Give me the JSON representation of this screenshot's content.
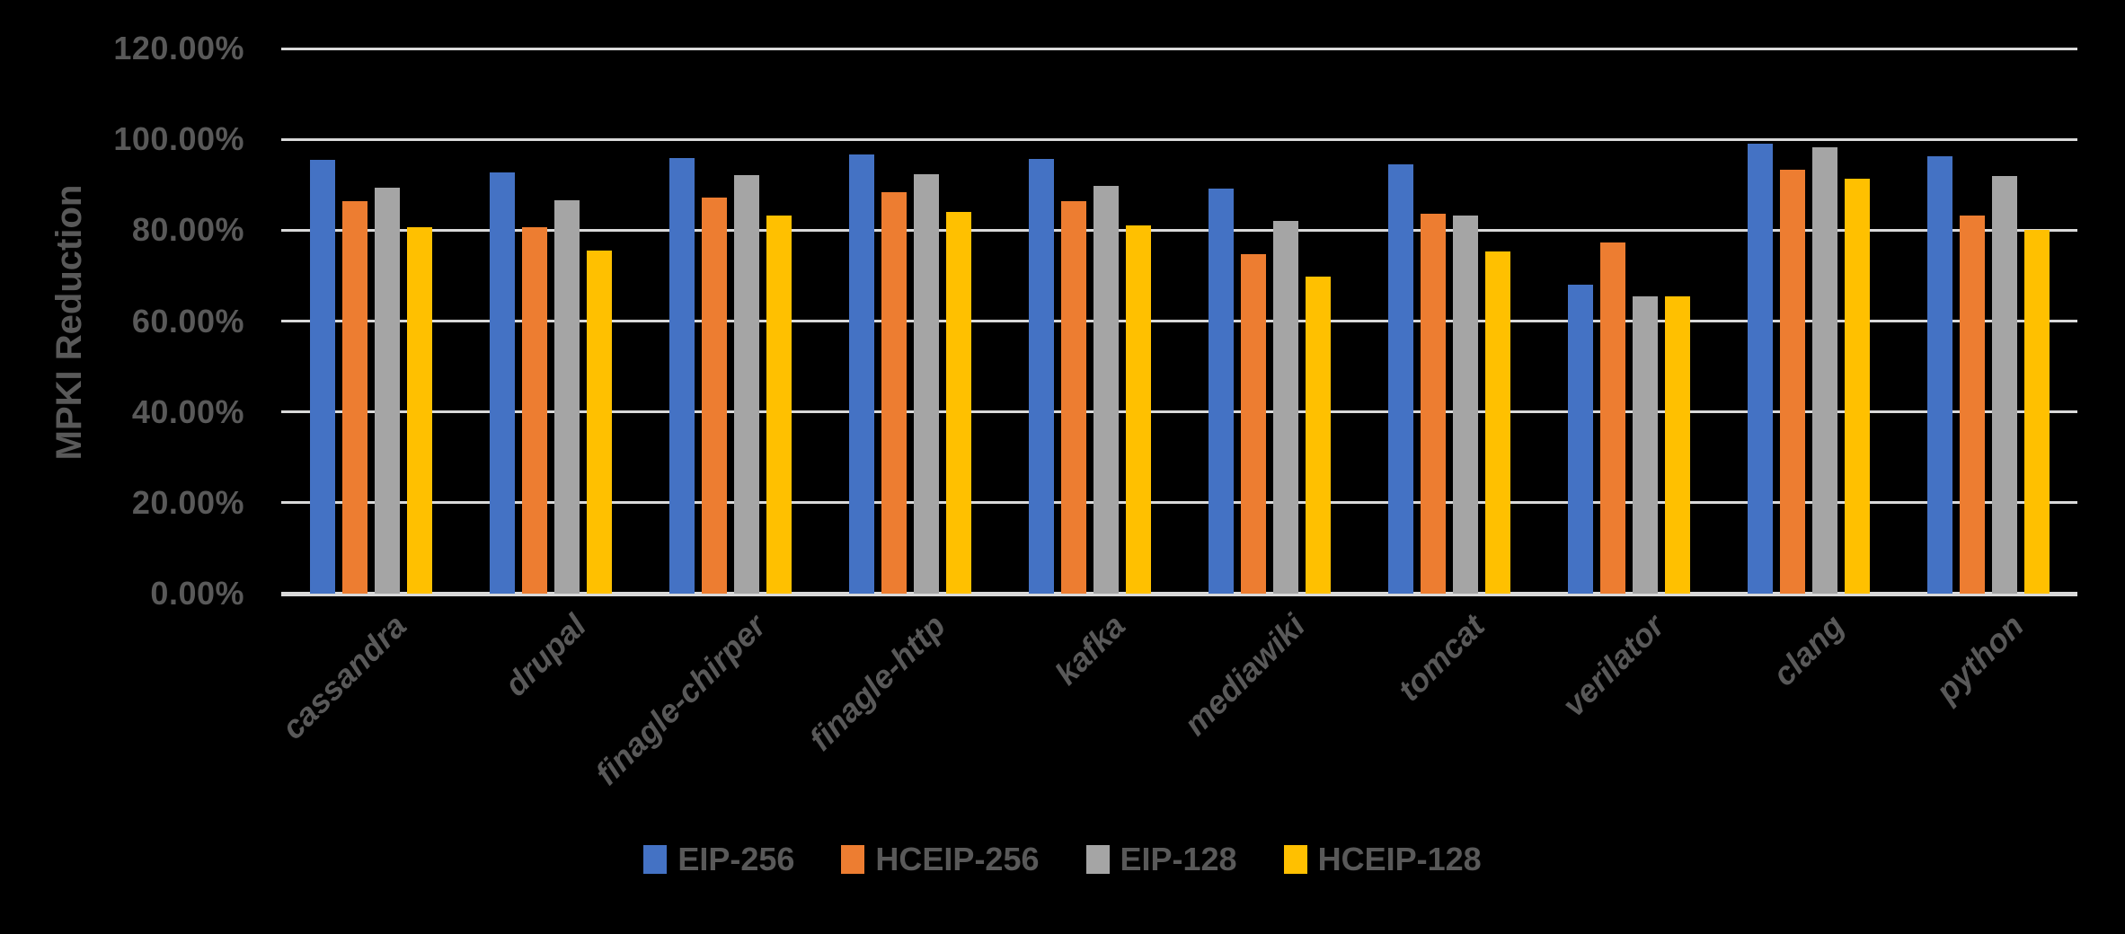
{
  "chart_data": {
    "type": "bar",
    "title": "",
    "xlabel": "",
    "ylabel": "MPKI Reduction",
    "background_color": "#000000",
    "text_color": "#595959",
    "gridline_color": "#D9D9D9",
    "grid": true,
    "legend_position": "bottom",
    "categories": [
      "cassandra",
      "drupal",
      "finagle-chirper",
      "finagle-http",
      "kafka",
      "mediawiki",
      "tomcat",
      "verilator",
      "clang",
      "python"
    ],
    "series": [
      {
        "name": "EIP-256",
        "color": "#4472C4",
        "values": [
          95.5,
          92.7,
          95.9,
          96.7,
          95.7,
          89.2,
          94.5,
          68.0,
          99.1,
          96.3
        ]
      },
      {
        "name": "HCEIP-256",
        "color": "#ED7D31",
        "values": [
          86.4,
          80.7,
          87.1,
          88.4,
          86.3,
          74.8,
          83.7,
          77.3,
          93.3,
          83.2
        ]
      },
      {
        "name": "EIP-128",
        "color": "#A5A5A5",
        "values": [
          89.4,
          86.5,
          92.1,
          92.3,
          89.7,
          82.0,
          83.3,
          65.4,
          98.3,
          91.9
        ]
      },
      {
        "name": "HCEIP-128",
        "color": "#FFC000",
        "values": [
          80.7,
          75.6,
          83.2,
          84.0,
          81.1,
          69.8,
          75.4,
          65.5,
          91.4,
          80.1
        ]
      }
    ],
    "y_axis": {
      "min": 0,
      "max": 120,
      "tick_step": 20,
      "tick_labels": [
        "0.00%",
        "20.00%",
        "40.00%",
        "60.00%",
        "80.00%",
        "100.00%",
        "120.00%"
      ]
    }
  }
}
